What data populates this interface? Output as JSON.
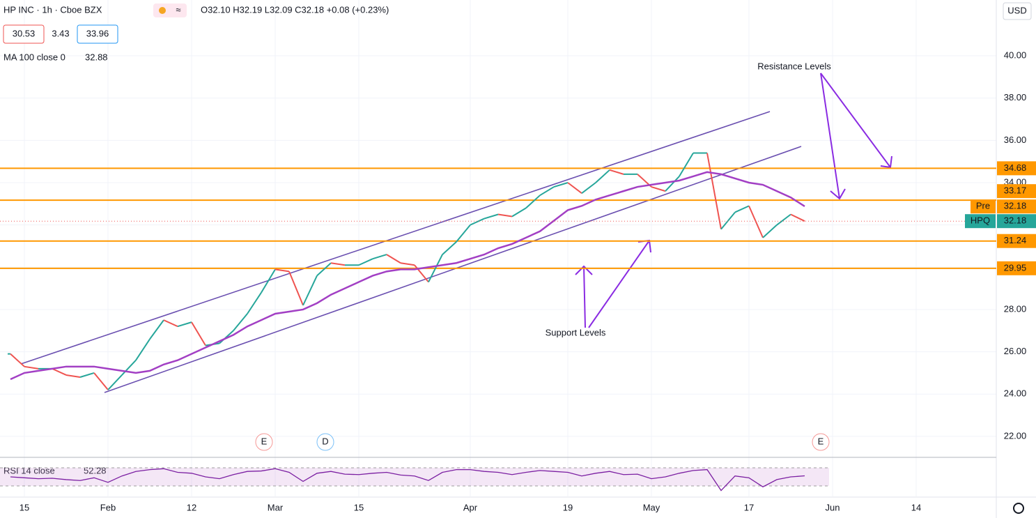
{
  "header": {
    "title": "HP INC · 1h · Cboe BZX",
    "ohlc": "O32.10 H32.19 L32.09 C32.18 +0.08 (+0.23%)",
    "quotes": [
      30.53,
      3.43,
      33.96
    ],
    "currency": "USD"
  },
  "chart_data": {
    "type": "line",
    "categories": [
      null,
      "15",
      null,
      null,
      null,
      null,
      null,
      "Feb",
      null,
      null,
      null,
      null,
      null,
      "12",
      null,
      null,
      null,
      null,
      null,
      "Mar",
      null,
      null,
      null,
      null,
      null,
      "15",
      null,
      null,
      null,
      null,
      null,
      null,
      null,
      "Apr",
      null,
      null,
      null,
      null,
      null,
      null,
      "19",
      null,
      null,
      null,
      null,
      null,
      "May",
      null,
      null,
      null,
      null,
      null,
      null,
      "17",
      null,
      null,
      null,
      null,
      null,
      "Jun",
      null,
      null,
      null,
      null,
      null,
      "14",
      null,
      null,
      null,
      null,
      null
    ],
    "series": [
      {
        "name": "HPQ",
        "color": "#26a69a",
        "down_color": "#ef5350",
        "values": [
          25.9,
          25.3,
          25.2,
          25.2,
          24.9,
          24.8,
          25.0,
          24.2,
          24.9,
          25.6,
          26.6,
          27.5,
          27.2,
          27.4,
          26.3,
          26.4,
          27.0,
          27.8,
          28.8,
          29.9,
          29.8,
          28.2,
          29.6,
          30.2,
          30.1,
          30.1,
          30.4,
          30.6,
          30.2,
          30.1,
          29.3,
          30.6,
          31.2,
          32.0,
          32.3,
          32.5,
          32.4,
          32.8,
          33.4,
          33.8,
          34.0,
          33.5,
          34.0,
          34.6,
          34.4,
          34.4,
          33.8,
          33.6,
          34.3,
          35.4,
          35.4,
          31.8,
          32.6,
          32.9,
          31.4,
          32.0,
          32.5,
          32.18,
          null,
          null,
          null,
          null,
          null,
          null,
          null,
          null,
          null,
          null,
          null,
          null,
          null
        ]
      },
      {
        "name": "MA 100 close 0",
        "color": "#a23fc4",
        "values": [
          24.7,
          25.0,
          25.1,
          25.2,
          25.3,
          25.3,
          25.3,
          25.2,
          25.1,
          25.0,
          25.1,
          25.4,
          25.6,
          25.9,
          26.2,
          26.5,
          26.8,
          27.2,
          27.5,
          27.8,
          27.9,
          28.0,
          28.3,
          28.7,
          29.0,
          29.3,
          29.6,
          29.8,
          29.9,
          29.9,
          30.0,
          30.1,
          30.2,
          30.4,
          30.6,
          30.9,
          31.1,
          31.4,
          31.7,
          32.2,
          32.7,
          32.9,
          33.2,
          33.4,
          33.6,
          33.8,
          33.9,
          34.0,
          34.1,
          34.3,
          34.5,
          34.4,
          34.2,
          34.0,
          33.9,
          33.6,
          33.3,
          32.88,
          null,
          null,
          null,
          null,
          null,
          null,
          null,
          null,
          null,
          null,
          null,
          null,
          null
        ]
      }
    ],
    "ylim": [
      21.04,
      42.64
    ],
    "yticks": [
      {
        "value": 22,
        "label": "22.00"
      },
      {
        "value": 24,
        "label": "24.00"
      },
      {
        "value": 26,
        "label": "26.00"
      },
      {
        "value": 28,
        "label": "28.00"
      },
      {
        "value": 30,
        "label": "30.00"
      },
      {
        "value": 32,
        "label": "32.00"
      },
      {
        "value": 34,
        "label": "34.00"
      },
      {
        "value": 36,
        "label": "36.00"
      },
      {
        "value": 38,
        "label": "38.00"
      },
      {
        "value": 40,
        "label": "40.00"
      }
    ],
    "grid": true,
    "levels": {
      "color": "#ff9800",
      "values": [
        34.68,
        33.17,
        31.24,
        29.95
      ]
    },
    "pre_label": "Pre",
    "annotations": [
      "Resistance Levels",
      "Support Levels"
    ],
    "events": [
      "E",
      "D",
      "E"
    ],
    "rsi": {
      "name": "RSI 14 close",
      "color": "#7b1fa2",
      "ylim": [
        7,
        91.5
      ],
      "levels": [
        70,
        30
      ],
      "values": [
        50,
        48,
        46,
        47,
        44,
        42,
        48,
        38,
        52,
        62,
        66,
        68,
        60,
        58,
        50,
        46,
        55,
        62,
        63,
        68,
        60,
        40,
        58,
        62,
        56,
        55,
        58,
        60,
        54,
        52,
        42,
        60,
        66,
        66,
        62,
        60,
        55,
        60,
        64,
        62,
        60,
        52,
        58,
        62,
        55,
        56,
        46,
        50,
        58,
        64,
        66,
        20,
        52,
        48,
        28,
        44,
        50,
        52.28,
        null,
        null,
        null,
        null,
        null,
        null,
        null,
        null,
        null,
        null,
        null,
        null,
        null
      ]
    }
  }
}
